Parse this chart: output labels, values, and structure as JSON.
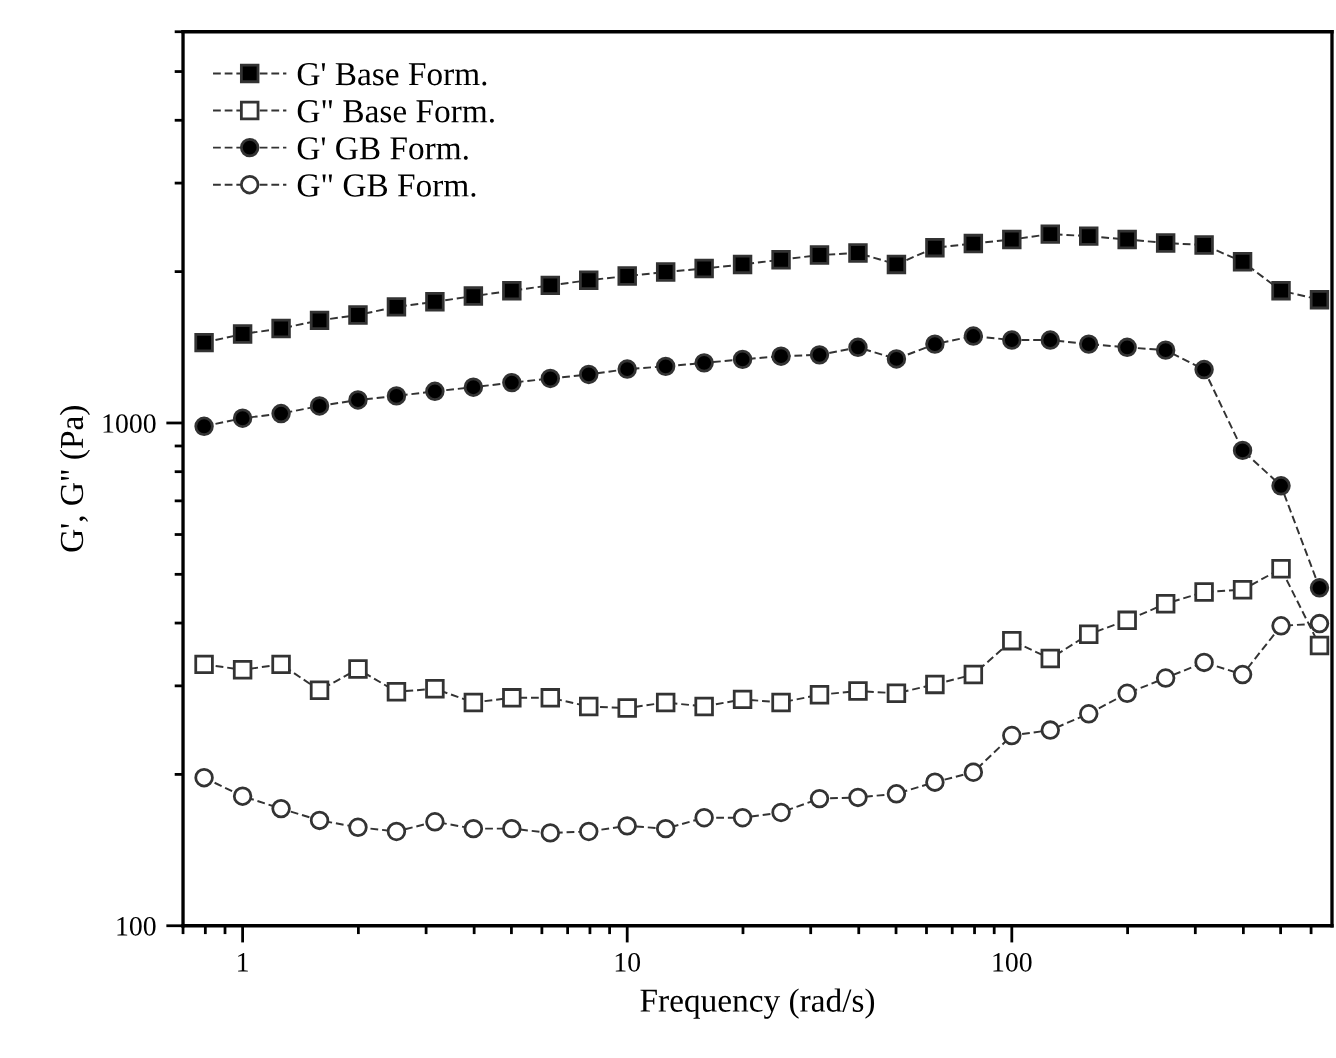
{
  "chart_data": {
    "type": "line",
    "xlabel": "Frequency (rad/s)",
    "ylabel": "G', G\" (Pa)",
    "log": "xy",
    "x": [
      0.794,
      1,
      1.259,
      1.585,
      1.995,
      2.512,
      3.162,
      3.981,
      5.012,
      6.31,
      7.943,
      10,
      12.59,
      15.85,
      19.95,
      25.12,
      31.62,
      39.81,
      50.12,
      63.1,
      79.43,
      100,
      125.9,
      158.5,
      199.5,
      251.2,
      316.2,
      398.1,
      501.2,
      631
    ],
    "xlim": [
      0.7,
      680
    ],
    "ylim": [
      100,
      6000
    ],
    "xticks": [
      1,
      10,
      100
    ],
    "yticks": [
      100,
      1000
    ],
    "grid": false,
    "legend": "top left",
    "line_style": "dashed",
    "series": [
      {
        "name": "G' Base Form.",
        "color": "#000000",
        "marker": "square",
        "values": [
          1445,
          1503,
          1541,
          1600,
          1640,
          1702,
          1742,
          1788,
          1833,
          1878,
          1923,
          1960,
          1997,
          2029,
          2067,
          2112,
          2158,
          2178,
          2067,
          2232,
          2274,
          2317,
          2375,
          2353,
          2317,
          2280,
          2259,
          2093,
          1833,
          1759
        ]
      },
      {
        "name": "G\" Base Form.",
        "color": "#ffffff",
        "marker": "square",
        "values": [
          331,
          323,
          331,
          294,
          324,
          292,
          296,
          278,
          284,
          284,
          273,
          271,
          278,
          273,
          282,
          278,
          288,
          293,
          290,
          302,
          316,
          369,
          340,
          380,
          405,
          437,
          461,
          466,
          513,
          361
        ]
      },
      {
        "name": "G' GB Form.",
        "color": "#000000",
        "marker": "circle",
        "values": [
          985,
          1022,
          1044,
          1081,
          1111,
          1132,
          1156,
          1178,
          1203,
          1226,
          1249,
          1280,
          1296,
          1317,
          1338,
          1358,
          1366,
          1414,
          1341,
          1435,
          1489,
          1462,
          1462,
          1435,
          1414,
          1396,
          1277,
          882,
          750,
          470
        ]
      },
      {
        "name": "G\" GB Form.",
        "color": "#ffffff",
        "marker": "circle",
        "values": [
          197,
          181,
          171,
          162,
          157,
          154,
          161,
          156,
          156,
          153,
          154,
          158,
          156,
          164,
          164,
          168,
          179,
          180,
          183,
          193,
          202,
          239,
          245,
          264,
          290,
          311,
          334,
          316,
          395,
          399
        ]
      }
    ]
  }
}
